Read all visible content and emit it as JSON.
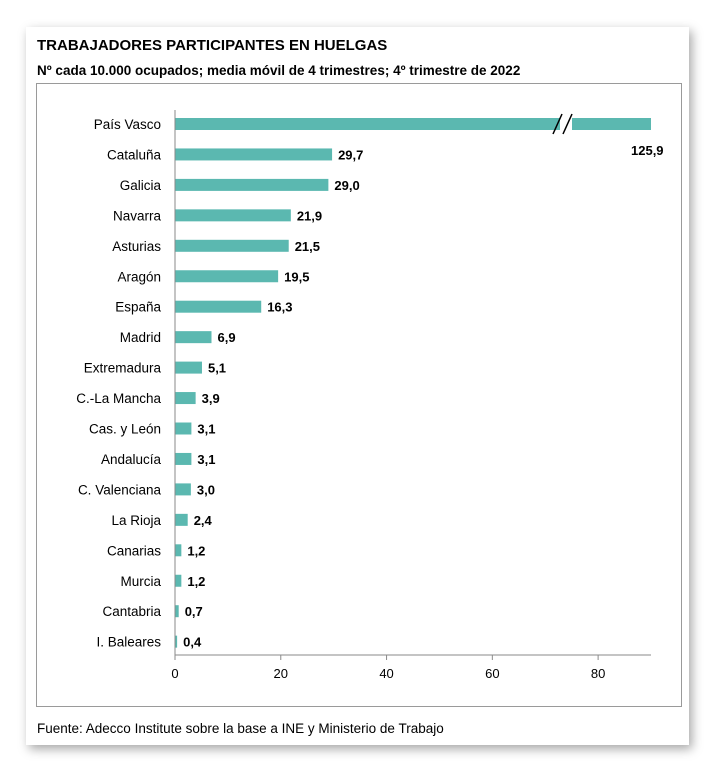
{
  "title": "TRABAJADORES PARTICIPANTES EN HUELGAS",
  "subtitle": "Nº cada 10.000 ocupados; media móvil de 4 trimestres; 4º trimestre de 2022",
  "source": "Fuente: Adecco Institute sobre la base a INE y Ministerio de Trabajo",
  "chart_data": {
    "type": "bar",
    "orientation": "horizontal",
    "categories": [
      "País Vasco",
      "Cataluña",
      "Galicia",
      "Navarra",
      "Asturias",
      "Aragón",
      "España",
      "Madrid",
      "Extremadura",
      "C.-La Mancha",
      "Cas. y León",
      "Andalucía",
      "C. Valenciana",
      "La Rioja",
      "Canarias",
      "Murcia",
      "Cantabria",
      "I. Baleares"
    ],
    "values": [
      125.9,
      29.7,
      29.0,
      21.9,
      21.5,
      19.5,
      16.3,
      6.9,
      5.1,
      3.9,
      3.1,
      3.1,
      3.0,
      2.4,
      1.2,
      1.2,
      0.7,
      0.4
    ],
    "labels": [
      "125,9",
      "29,7",
      "29,0",
      "21,9",
      "21,5",
      "19,5",
      "16,3",
      "6,9",
      "5,1",
      "3,9",
      "3,1",
      "3,1",
      "3,0",
      "2,4",
      "1,2",
      "1,2",
      "0,7",
      "0,4"
    ],
    "xlim": [
      0,
      90
    ],
    "xticks": [
      "0",
      "20",
      "40",
      "60",
      "80"
    ],
    "xtick_values": [
      0,
      20,
      40,
      60,
      80
    ],
    "axis_break": true,
    "bar_color": "#5bb8b0",
    "grid": false,
    "legend": "none"
  }
}
